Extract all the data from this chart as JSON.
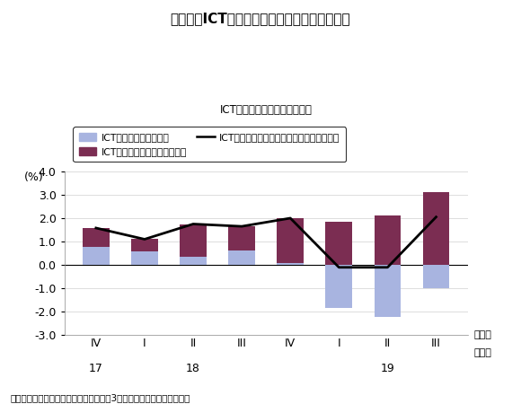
{
  "title": "図表２　ICT関連財・サービス総合指標の推移",
  "subtitle": "ICT関連財・サービス総合指標",
  "ylabel": "(%)",
  "xlabel_period": "（期）",
  "xlabel_year": "（年）",
  "footnote": "（出所）経済産業省「鉱工業指数」「第3次産業活動指数」より作成。",
  "x_labels_roman": [
    "IV",
    "I",
    "II",
    "III",
    "IV",
    "I",
    "II",
    "III"
  ],
  "x_labels_year_text": [
    "17",
    "18",
    "19"
  ],
  "x_labels_year_pos": [
    0,
    2,
    6
  ],
  "ict_goods": [
    0.78,
    0.6,
    0.35,
    0.62,
    0.1,
    -1.85,
    -2.2,
    -1.0
  ],
  "ict_services_height": [
    0.8,
    0.5,
    1.4,
    1.03,
    1.9,
    1.85,
    2.1,
    3.1
  ],
  "line_values": [
    1.58,
    1.1,
    1.75,
    1.65,
    2.0,
    -0.1,
    -0.1,
    2.05
  ],
  "bar_color_goods": "#a8b4e0",
  "bar_color_services": "#7b2d52",
  "line_color": "#000000",
  "ylim": [
    -3.0,
    4.0
  ],
  "yticks": [
    -3.0,
    -2.0,
    -1.0,
    0.0,
    1.0,
    2.0,
    3.0,
    4.0
  ],
  "ytick_labels": [
    "-3.0",
    "-2.0",
    "-1.0",
    "0.0",
    "1.0",
    "2.0",
    "3.0",
    "4.0"
  ],
  "legend_goods": "ICT関連財指標・寄与度",
  "legend_services": "ICT関連サービス指標・寄与度",
  "legend_line": "ICT関連財・サービス総合指標・前年同期比",
  "bar_width": 0.55
}
